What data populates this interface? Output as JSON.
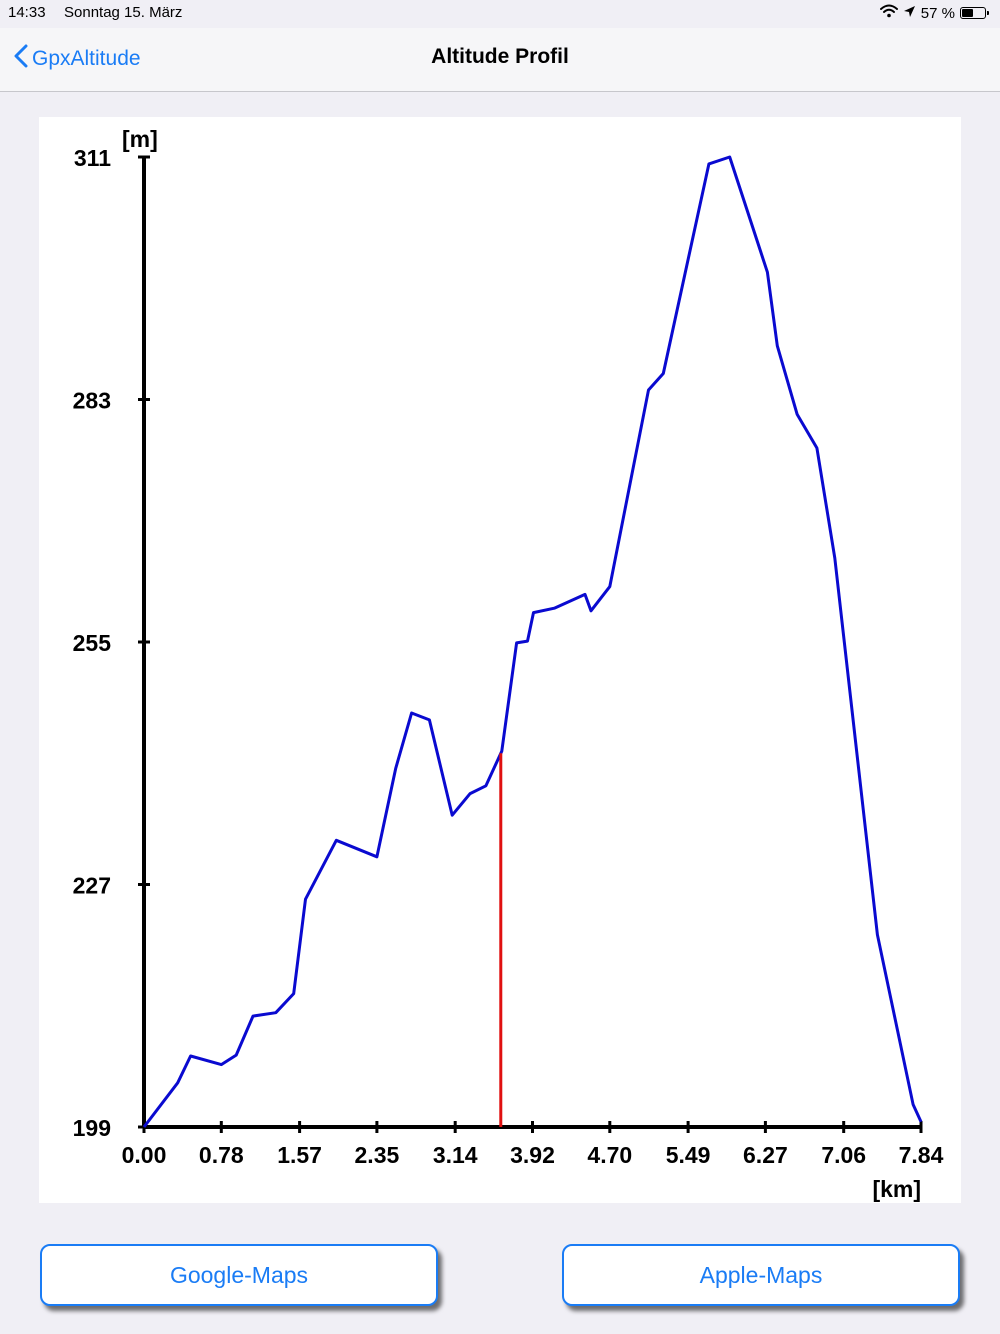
{
  "status_bar": {
    "time": "14:33",
    "date": "Sonntag 15. März",
    "battery": "57 %",
    "battery_level": 0.57
  },
  "nav": {
    "back_label": "GpxAltitude",
    "title": "Altitude Profil"
  },
  "colors": {
    "accent": "#1a7cf5",
    "profile_line": "#0a0ad0",
    "marker_line": "#e01010"
  },
  "chart_data": {
    "type": "line",
    "xlabel": "[km]",
    "ylabel": "[m]",
    "xlim": [
      0,
      7.84
    ],
    "ylim": [
      199,
      311
    ],
    "x_ticks": [
      "0.00",
      "0.78",
      "1.57",
      "2.35",
      "3.14",
      "3.92",
      "4.70",
      "5.49",
      "6.27",
      "7.06",
      "7.84"
    ],
    "y_ticks": [
      "199",
      "227",
      "255",
      "283",
      "311"
    ],
    "marker_x": 3.6,
    "series": [
      {
        "x": [
          0,
          0.34,
          0.47,
          0.78,
          0.93,
          1.1,
          1.33,
          1.51,
          1.63,
          1.94,
          2.35,
          2.54,
          2.7,
          2.88,
          3.11,
          3.29,
          3.45,
          3.61,
          3.76,
          3.87,
          3.93,
          4.14,
          4.45,
          4.51,
          4.7,
          5.09,
          5.24,
          5.7,
          5.91,
          6.29,
          6.39,
          6.59,
          6.79,
          6.97,
          7.4,
          7.76,
          7.84
        ],
        "y": [
          199,
          204.1,
          207.2,
          206.2,
          207.3,
          211.8,
          212.2,
          214.4,
          225.3,
          232.1,
          230.2,
          240.4,
          246.8,
          246.0,
          235.0,
          237.5,
          238.4,
          242.4,
          254.9,
          255.1,
          258.4,
          258.9,
          260.5,
          258.6,
          261.4,
          284.1,
          286.0,
          310.2,
          311,
          297.7,
          289.2,
          281.3,
          277.4,
          264.7,
          221.2,
          201.6,
          199.6
        ]
      }
    ]
  },
  "buttons": {
    "google_maps": "Google-Maps",
    "apple_maps": "Apple-Maps"
  }
}
